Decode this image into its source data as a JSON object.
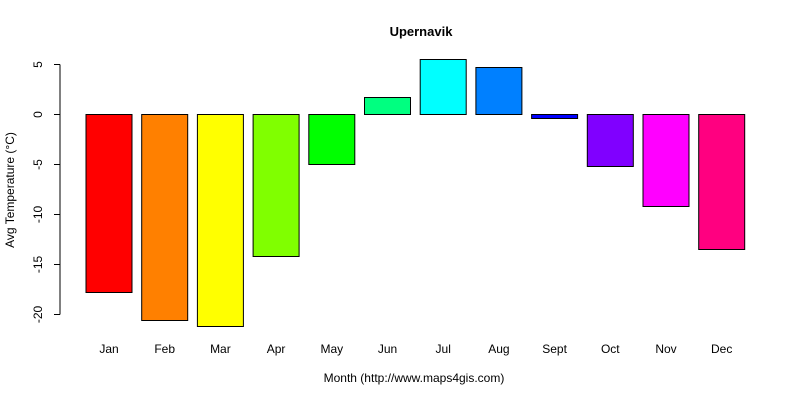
{
  "chart_data": {
    "type": "bar",
    "title": "Upernavik",
    "xlabel": "Month (http://www.maps4gis.com)",
    "ylabel": "Avg Temperature (°C)",
    "categories": [
      "Jan",
      "Feb",
      "Mar",
      "Apr",
      "May",
      "Jun",
      "Jul",
      "Aug",
      "Sept",
      "Oct",
      "Nov",
      "Dec"
    ],
    "values": [
      -17.8,
      -20.6,
      -21.2,
      -14.2,
      -5.0,
      1.7,
      5.5,
      4.7,
      -0.4,
      -5.2,
      -9.2,
      -13.5
    ],
    "colors": [
      "#FF0000",
      "#FF8000",
      "#FFFF00",
      "#80FF00",
      "#00FF00",
      "#00FF80",
      "#00FFFF",
      "#0080FF",
      "#0000FF",
      "#8000FF",
      "#FF00FF",
      "#FF0080"
    ],
    "yticks": [
      5,
      0,
      -5,
      -10,
      -15,
      -20
    ],
    "ylim": [
      -21.2,
      5.5
    ],
    "grid": false,
    "legend": "none"
  }
}
